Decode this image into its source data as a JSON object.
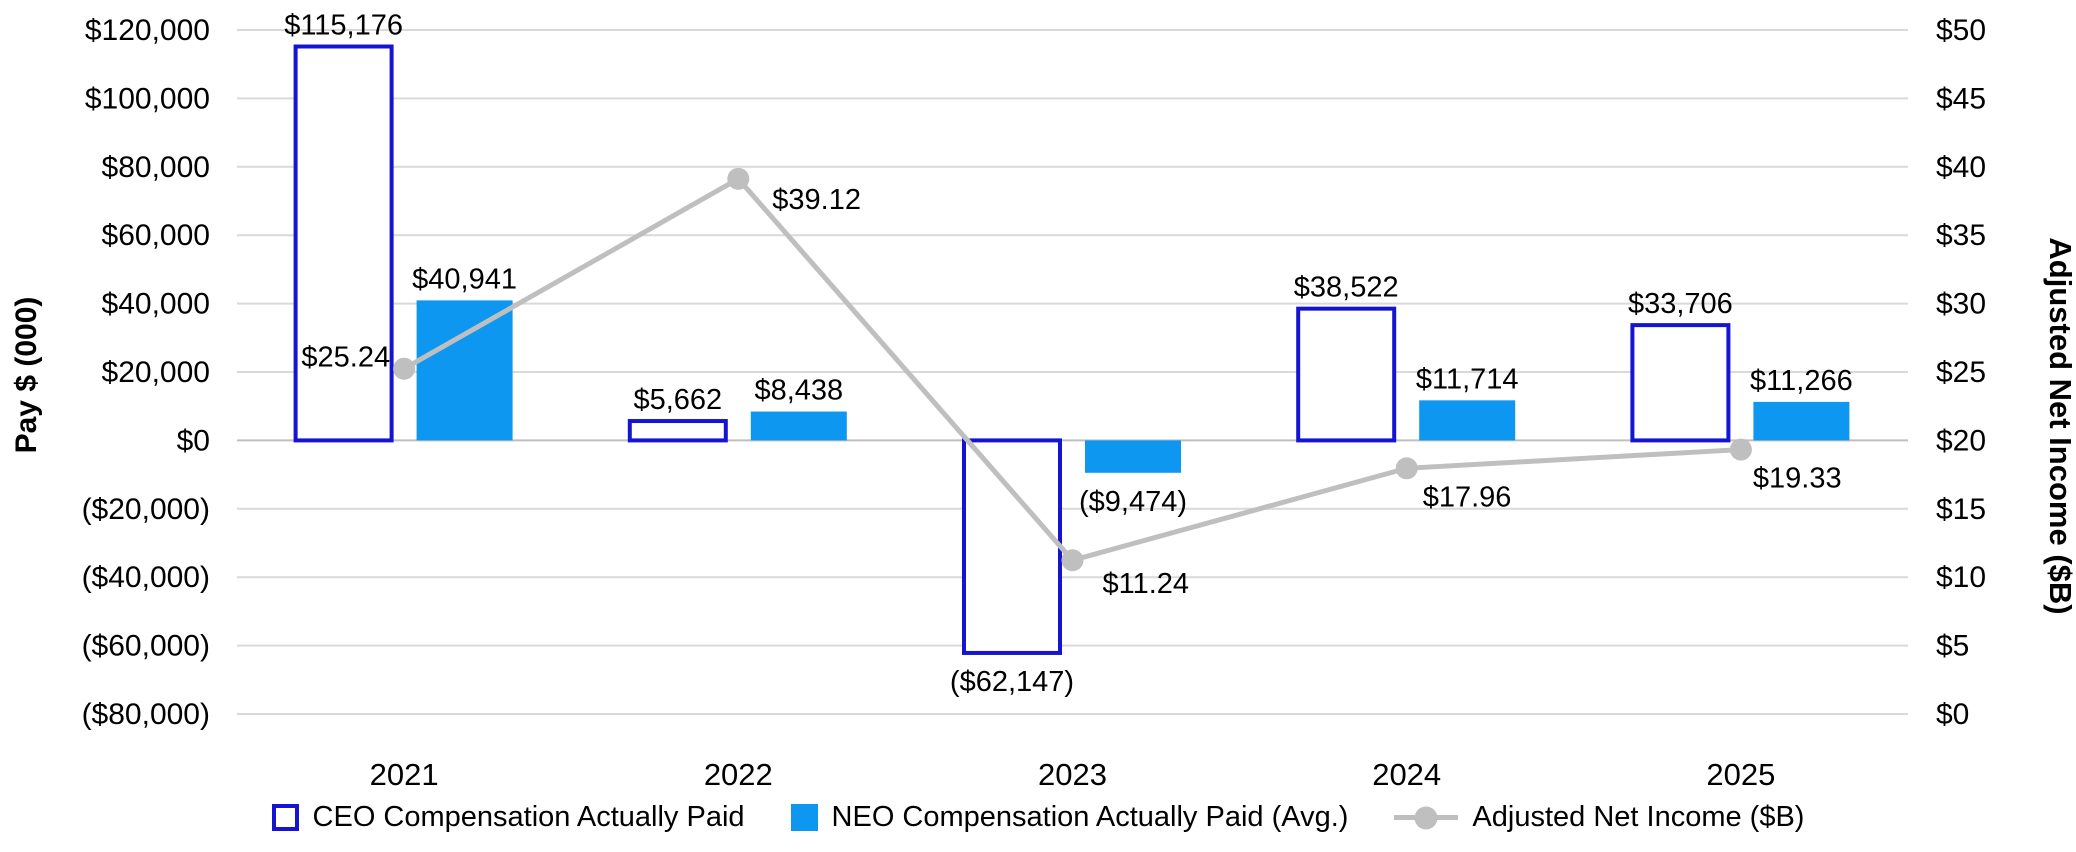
{
  "chart_data": {
    "type": "combo-bar-line",
    "title": "",
    "categories": [
      "2021",
      "2022",
      "2023",
      "2024",
      "2025"
    ],
    "series": [
      {
        "name": "CEO Compensation Actually Paid",
        "type": "bar",
        "style": "outline",
        "axis": "left",
        "values": [
          115176,
          5662,
          -62147,
          38522,
          33706
        ],
        "labels": [
          "$115,176",
          "$5,662",
          "($62,147)",
          "$38,522",
          "$33,706"
        ]
      },
      {
        "name": "NEO Compensation Actually Paid (Avg.)",
        "type": "bar",
        "style": "solid",
        "axis": "left",
        "values": [
          40941,
          8438,
          -9474,
          11714,
          11266
        ],
        "labels": [
          "$40,941",
          "$8,438",
          "($9,474)",
          "$11,714",
          "$11,266"
        ]
      },
      {
        "name": "Adjusted Net Income ($B)",
        "type": "line",
        "axis": "right",
        "values": [
          25.24,
          39.12,
          11.24,
          17.96,
          19.33
        ],
        "labels": [
          "$25.24",
          "$39.12",
          "$11.24",
          "$17.96",
          "$19.33"
        ]
      }
    ],
    "left_axis": {
      "title": "Pay $ (000)",
      "min": -80000,
      "max": 120000,
      "step": 20000,
      "tick_labels": [
        "$120,000",
        "$100,000",
        "$80,000",
        "$60,000",
        "$40,000",
        "$20,000",
        "$0",
        "($20,000)",
        "($40,000)",
        "($60,000)",
        "($80,000)"
      ]
    },
    "right_axis": {
      "title": "Adjusted Net Income ($B)",
      "min": 0,
      "max": 50,
      "step": 5,
      "tick_labels": [
        "$50",
        "$45",
        "$40",
        "$35",
        "$30",
        "$25",
        "$20",
        "$15",
        "$10",
        "$5",
        "$0"
      ]
    },
    "grid": true,
    "legend_position": "bottom",
    "colors": {
      "ceo_bar_outline": "#1414d2",
      "neo_bar_fill": "#0d97f1",
      "line_gray": "#bfbfbf",
      "gridline": "#d9d9d9",
      "zero_line": "#bfbfbf",
      "text": "#000000",
      "background": "#ffffff"
    }
  }
}
